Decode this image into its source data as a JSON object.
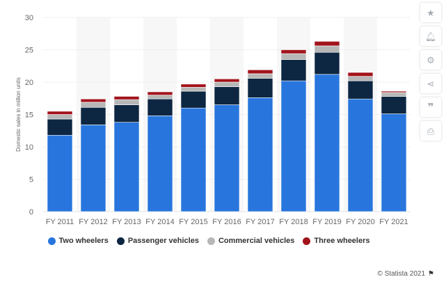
{
  "chart_data": {
    "type": "bar",
    "stacked": true,
    "categories": [
      "FY 2011",
      "FY 2012",
      "FY 2013",
      "FY 2014",
      "FY 2015",
      "FY 2016",
      "FY 2017",
      "FY 2018",
      "FY 2019",
      "FY 2020",
      "FY 2021"
    ],
    "series": [
      {
        "name": "Two wheelers",
        "color": "#2876dd",
        "values": [
          11.8,
          13.4,
          13.8,
          14.8,
          16.0,
          16.5,
          17.6,
          20.2,
          21.2,
          17.4,
          15.1
        ]
      },
      {
        "name": "Passenger vehicles",
        "color": "#0d2641",
        "values": [
          2.5,
          2.7,
          2.7,
          2.6,
          2.6,
          2.8,
          3.0,
          3.3,
          3.4,
          2.8,
          2.7
        ]
      },
      {
        "name": "Commercial vehicles",
        "color": "#b7b7b7",
        "values": [
          0.7,
          0.8,
          0.8,
          0.6,
          0.6,
          0.7,
          0.7,
          0.9,
          1.0,
          0.7,
          0.6
        ]
      },
      {
        "name": "Three wheelers",
        "color": "#a2141c",
        "values": [
          0.5,
          0.5,
          0.5,
          0.5,
          0.5,
          0.5,
          0.6,
          0.6,
          0.7,
          0.6,
          0.2
        ]
      }
    ],
    "ylabel": "Domestic sales in million units",
    "xlabel": "",
    "ylim": [
      0,
      30
    ],
    "yticks": [
      0,
      5,
      10,
      15,
      20,
      25,
      30
    ],
    "grid": true,
    "legend_position": "bottom"
  },
  "toolbar": {
    "icons": [
      "star-icon",
      "bell-icon",
      "gear-icon",
      "share-icon",
      "quote-icon",
      "print-icon"
    ]
  },
  "credit": {
    "text": "© Statista 2021"
  }
}
